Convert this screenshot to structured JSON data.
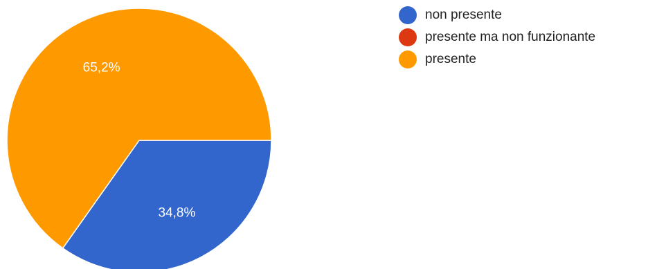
{
  "chart_data": {
    "type": "pie",
    "title": "",
    "series": [
      {
        "name": "non presente",
        "value": 34.8,
        "label": "34,8%",
        "color": "#3366cc"
      },
      {
        "name": "presente ma non funzionante",
        "value": 0,
        "label": "",
        "color": "#dc3912"
      },
      {
        "name": "presente",
        "value": 65.2,
        "label": "65,2%",
        "color": "#ff9900"
      }
    ],
    "legend_position": "right",
    "start_angle_deg": 90,
    "direction": "clockwise"
  }
}
